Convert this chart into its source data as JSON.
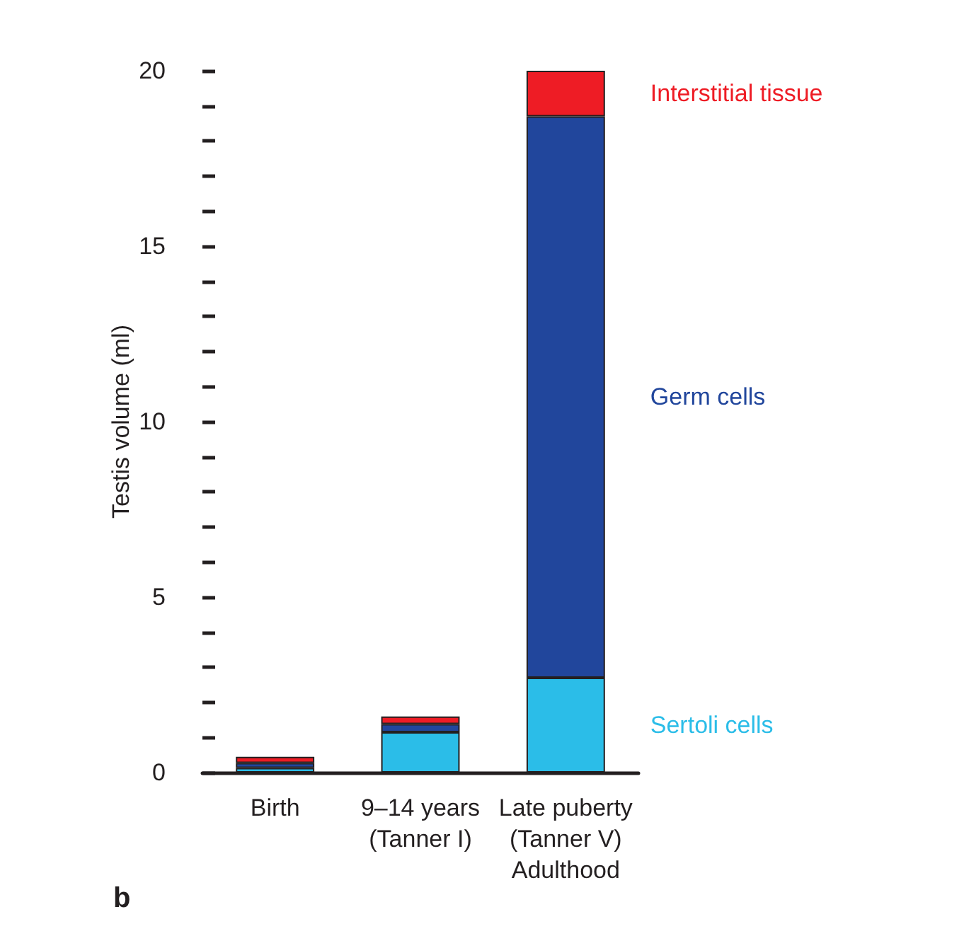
{
  "chart_data": {
    "type": "bar",
    "stacked": true,
    "ylabel": "Testis volume (ml)",
    "categories": [
      "Birth",
      "9–14 years\n(Tanner I)",
      "Late puberty\n(Tanner V)\nAdulthood"
    ],
    "series": [
      {
        "name": "Sertoli cells",
        "color": "#2bbde8",
        "values": [
          0.13,
          1.15,
          2.7
        ]
      },
      {
        "name": "Germ cells",
        "color": "#21469c",
        "values": [
          0.14,
          0.23,
          16.0
        ]
      },
      {
        "name": "Interstitial tissue",
        "color": "#ee1c25",
        "values": [
          0.18,
          0.22,
          1.3
        ]
      }
    ],
    "ylim": [
      0,
      20
    ],
    "yticks": [
      0,
      {
        "value": 1,
        "label": null
      },
      {
        "value": 2,
        "label": null
      },
      {
        "value": 3,
        "label": null
      },
      {
        "value": 4,
        "label": null
      },
      5,
      {
        "value": 6,
        "label": null
      },
      {
        "value": 7,
        "label": null
      },
      {
        "value": 8,
        "label": null
      },
      {
        "value": 9,
        "label": null
      },
      10,
      {
        "value": 11,
        "label": null
      },
      {
        "value": 12,
        "label": null
      },
      {
        "value": 13,
        "label": null
      },
      {
        "value": 14,
        "label": null
      },
      15,
      {
        "value": 16,
        "label": null
      },
      {
        "value": 17,
        "label": null
      },
      {
        "value": 18,
        "label": null
      },
      {
        "value": 19,
        "label": null
      },
      20
    ],
    "grid": false,
    "legend": false,
    "annotations": [
      "b"
    ]
  }
}
